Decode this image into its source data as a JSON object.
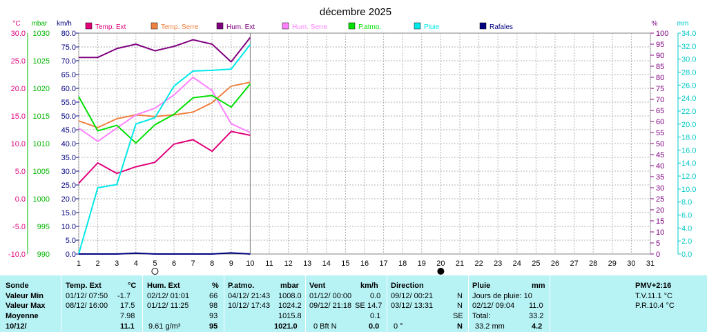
{
  "chart_data": {
    "type": "line",
    "title": "décembre 2025",
    "x_ticks": [
      "1",
      "2",
      "3",
      "4",
      "5",
      "6",
      "7",
      "8",
      "9",
      "10",
      "11",
      "12",
      "13",
      "14",
      "15",
      "16",
      "17",
      "18",
      "19",
      "20",
      "21",
      "22",
      "23",
      "24",
      "25",
      "26",
      "27",
      "28",
      "29",
      "30",
      "31"
    ],
    "axes": {
      "temp": {
        "unit": "°C",
        "min": -10,
        "max": 30,
        "ticks": [
          "30.0",
          "25.0",
          "20.0",
          "15.0",
          "10.0",
          "5.0",
          "0.0",
          "-5.0",
          "-10.0"
        ],
        "color": "#e0007a"
      },
      "pressure": {
        "unit": "mbar",
        "min": 990,
        "max": 1030,
        "ticks": [
          "1030",
          "1025",
          "1020",
          "1015",
          "1010",
          "1005",
          "1000",
          "995",
          "990"
        ],
        "color": "#00b400"
      },
      "wind": {
        "unit": "km/h",
        "min": 0,
        "max": 80,
        "ticks": [
          "80.0",
          "75.0",
          "70.0",
          "65.0",
          "60.0",
          "55.0",
          "50.0",
          "45.0",
          "40.0",
          "35.0",
          "30.0",
          "25.0",
          "20.0",
          "15.0",
          "10.0",
          "5.0",
          "0.0"
        ],
        "color": "#000080"
      },
      "humidity": {
        "unit": "%",
        "min": 0,
        "max": 100,
        "ticks": [
          "100",
          "95",
          "90",
          "85",
          "80",
          "75",
          "70",
          "65",
          "60",
          "55",
          "50",
          "45",
          "40",
          "35",
          "30",
          "25",
          "20",
          "15",
          "10",
          "5",
          "0"
        ],
        "color": "#800080"
      },
      "rain": {
        "unit": "mm",
        "min": 0,
        "max": 35,
        "ticks": [
          "34.0",
          "32.0",
          "30.0",
          "28.0",
          "26.0",
          "24.0",
          "22.0",
          "20.0",
          "18.0",
          "16.0",
          "14.0",
          "12.0",
          "10.0",
          "8.0",
          "6.0",
          "4.0",
          "2.0",
          "0.0"
        ],
        "color": "#00c8c8"
      }
    },
    "series": [
      {
        "name": "Temp. Ext",
        "axis": "temp",
        "color": "#e0007a",
        "x": [
          1,
          2,
          3,
          4,
          5,
          6,
          7,
          8,
          9,
          10
        ],
        "values": [
          2.8,
          6.5,
          4.6,
          5.8,
          6.6,
          9.9,
          10.7,
          8.6,
          12.2,
          11.5
        ]
      },
      {
        "name": "Temp. Serre",
        "axis": "temp",
        "color": "#f08040",
        "x": [
          1,
          2,
          3,
          4,
          5,
          6,
          7,
          8,
          9,
          10
        ],
        "values": [
          14.1,
          12.9,
          14.5,
          15.2,
          14.9,
          15.2,
          15.7,
          17.4,
          20.4,
          21.1
        ]
      },
      {
        "name": "Hum. Ext",
        "axis": "humidity",
        "color": "#800080",
        "x": [
          1,
          2,
          3,
          4,
          5,
          6,
          7,
          8,
          9,
          10
        ],
        "values": [
          89,
          89,
          93,
          95,
          92,
          94,
          97,
          95,
          87,
          98
        ]
      },
      {
        "name": "Hum. Serre",
        "axis": "humidity",
        "color": "#ff80ff",
        "x": [
          1,
          2,
          3,
          4,
          5,
          6,
          7,
          8,
          9,
          10
        ],
        "values": [
          57,
          51,
          57,
          63,
          66,
          72,
          80,
          74,
          59,
          55
        ]
      },
      {
        "name": "P.atmo.",
        "axis": "pressure",
        "color": "#00e000",
        "x": [
          1,
          2,
          3,
          4,
          5,
          6,
          7,
          8,
          9,
          10
        ],
        "values": [
          1018.5,
          1012.3,
          1013.3,
          1010.1,
          1013.4,
          1015.3,
          1018.3,
          1018.7,
          1016.6,
          1020.8
        ]
      },
      {
        "name": "Pluie",
        "axis": "rain",
        "color": "#00e8e8",
        "x": [
          1,
          2,
          3,
          4,
          5,
          6,
          7,
          8,
          9,
          10
        ],
        "values": [
          0,
          10.5,
          11,
          20.6,
          21.6,
          26.6,
          29,
          29.1,
          29.3,
          33.2
        ]
      },
      {
        "name": "Rafales",
        "axis": "wind",
        "color": "#000080",
        "x": [
          1,
          2,
          3,
          4,
          5,
          6,
          7,
          8,
          9,
          10
        ],
        "values": [
          0,
          0,
          0,
          0.3,
          0,
          0,
          0,
          0,
          0.4,
          0
        ]
      }
    ],
    "markers": [
      {
        "x": 5,
        "kind": "first-quarter-moon"
      },
      {
        "x": 20,
        "kind": "new-moon"
      }
    ],
    "grid": true
  },
  "panel": {
    "headers": [
      {
        "label": "Sonde",
        "unit": ""
      },
      {
        "label": "Temp. Ext",
        "unit": "°C"
      },
      {
        "label": "Hum. Ext",
        "unit": "%"
      },
      {
        "label": "P.atmo.",
        "unit": "mbar"
      },
      {
        "label": "Vent",
        "unit": "km/h"
      },
      {
        "label": "Direction",
        "unit": ""
      },
      {
        "label": "Pluie",
        "unit": "mm"
      },
      {
        "label": "PMV+2:16",
        "unit": ""
      }
    ],
    "rows": [
      {
        "label": "Valeur Min",
        "temp_time": "01/12/  07:50",
        "temp_val": "-1.7",
        "hum_time": "02/12/  01:01",
        "hum_val": "66",
        "p_time": "04/12/  21:43",
        "p_val": "1008.0",
        "w_time": "01/12/  00:00",
        "w_val": "0.0",
        "d_time": "09/12/  00:21",
        "d_val": "N",
        "r_label": "Jours de pluie: 10",
        "r_val": "",
        "x_text": "T.V.11.1 °C"
      },
      {
        "label": "Valeur Max",
        "temp_time": "08/12/  16:00",
        "temp_val": "17.5",
        "hum_time": "01/12/  11:25",
        "hum_val": "98",
        "p_time": "10/12/  17:43",
        "p_val": "1024.2",
        "w_time": "09/12/  21:18",
        "w_dir": "SE",
        "w_val": "14.7",
        "d_time": "03/12/  13:31",
        "d_val": "N",
        "r_label": "02/12/  09:04",
        "r_val": "11.0",
        "x_text": "P.R.10.4 °C"
      },
      {
        "label": "Moyenne",
        "temp_val": "7.98",
        "hum_val": "93",
        "p_val": "1015.8",
        "w_val": "0.1",
        "d_val": "SE",
        "r_label": "Total:",
        "r_val": "33.2"
      },
      {
        "label": "10/12/",
        "temp_val": "11.1",
        "hum_extra": "9.61 g/m³",
        "hum_val": "95",
        "p_val": "1021.0",
        "w_extra": "0 Bft N",
        "w_val": "0.0",
        "d_extra": "0 °",
        "d_val": "N",
        "r_label": "33.2 mm",
        "r_val": "4.2"
      }
    ]
  }
}
